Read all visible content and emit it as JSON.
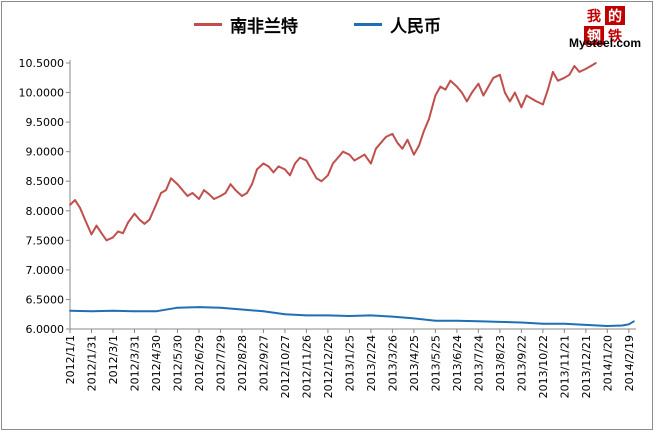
{
  "chart_data": {
    "type": "line",
    "title": "",
    "xlabel": "",
    "ylabel": "",
    "ylim": [
      6.0,
      10.5
    ],
    "yticks": [
      "10.5000",
      "10.0000",
      "9.5000",
      "9.0000",
      "8.5000",
      "8.0000",
      "7.5000",
      "7.0000",
      "6.5000",
      "6.0000"
    ],
    "grid": false,
    "legend_position": "top",
    "x_range": [
      "2012-01-01",
      "2014-03-01"
    ],
    "x_tick_labels": [
      "2012/1/1",
      "2012/1/31",
      "2012/3/1",
      "2012/3/31",
      "2012/4/30",
      "2012/5/30",
      "2012/6/29",
      "2012/7/29",
      "2012/8/28",
      "2012/9/27",
      "2012/10/27",
      "2012/11/26",
      "2012/12/26",
      "2013/1/25",
      "2013/2/24",
      "2013/3/26",
      "2013/4/25",
      "2013/5/25",
      "2013/6/24",
      "2013/7/24",
      "2013/8/23",
      "2013/9/22",
      "2013/10/22",
      "2013/11/21",
      "2013/12/21",
      "2014/1/20",
      "2014/2/19"
    ],
    "series": [
      {
        "name": "南非兰特",
        "color": "#c0504d",
        "x": [
          "2012-01-01",
          "2012-01-08",
          "2012-01-15",
          "2012-01-22",
          "2012-01-31",
          "2012-02-07",
          "2012-02-14",
          "2012-02-21",
          "2012-03-01",
          "2012-03-08",
          "2012-03-15",
          "2012-03-22",
          "2012-03-31",
          "2012-04-07",
          "2012-04-14",
          "2012-04-21",
          "2012-04-30",
          "2012-05-07",
          "2012-05-14",
          "2012-05-21",
          "2012-05-30",
          "2012-06-06",
          "2012-06-13",
          "2012-06-20",
          "2012-06-29",
          "2012-07-06",
          "2012-07-13",
          "2012-07-20",
          "2012-07-29",
          "2012-08-05",
          "2012-08-12",
          "2012-08-19",
          "2012-08-28",
          "2012-09-04",
          "2012-09-11",
          "2012-09-18",
          "2012-09-27",
          "2012-10-04",
          "2012-10-11",
          "2012-10-18",
          "2012-10-27",
          "2012-11-03",
          "2012-11-10",
          "2012-11-17",
          "2012-11-26",
          "2012-12-03",
          "2012-12-10",
          "2012-12-17",
          "2012-12-26",
          "2013-01-02",
          "2013-01-09",
          "2013-01-16",
          "2013-01-25",
          "2013-02-01",
          "2013-02-08",
          "2013-02-15",
          "2013-02-24",
          "2013-03-03",
          "2013-03-10",
          "2013-03-17",
          "2013-03-26",
          "2013-04-02",
          "2013-04-09",
          "2013-04-16",
          "2013-04-25",
          "2013-05-02",
          "2013-05-09",
          "2013-05-16",
          "2013-05-25",
          "2013-06-01",
          "2013-06-08",
          "2013-06-15",
          "2013-06-24",
          "2013-07-01",
          "2013-07-08",
          "2013-07-15",
          "2013-07-24",
          "2013-07-31",
          "2013-08-07",
          "2013-08-14",
          "2013-08-23",
          "2013-08-30",
          "2013-09-06",
          "2013-09-13",
          "2013-09-22",
          "2013-09-29",
          "2013-10-06",
          "2013-10-13",
          "2013-10-22",
          "2013-10-29",
          "2013-11-05",
          "2013-11-12",
          "2013-11-21",
          "2013-11-28",
          "2013-12-05",
          "2013-12-12",
          "2013-12-21",
          "2013-12-28",
          "2014-01-04"
        ],
        "values": [
          8.1,
          8.18,
          8.05,
          7.85,
          7.6,
          7.75,
          7.62,
          7.5,
          7.55,
          7.65,
          7.62,
          7.8,
          7.95,
          7.85,
          7.78,
          7.85,
          8.1,
          8.3,
          8.35,
          8.55,
          8.45,
          8.35,
          8.25,
          8.3,
          8.2,
          8.35,
          8.28,
          8.2,
          8.25,
          8.3,
          8.45,
          8.35,
          8.25,
          8.3,
          8.45,
          8.7,
          8.8,
          8.75,
          8.65,
          8.75,
          8.7,
          8.6,
          8.8,
          8.9,
          8.85,
          8.7,
          8.55,
          8.5,
          8.6,
          8.8,
          8.9,
          9.0,
          8.95,
          8.85,
          8.9,
          8.95,
          8.8,
          9.05,
          9.15,
          9.25,
          9.3,
          9.15,
          9.05,
          9.2,
          8.95,
          9.1,
          9.35,
          9.55,
          9.95,
          10.1,
          10.05,
          10.2,
          10.1,
          10.0,
          9.85,
          10.0,
          10.15,
          9.95,
          10.1,
          10.25,
          10.3,
          10.0,
          9.85,
          10.0,
          9.75,
          9.95,
          9.9,
          9.85,
          9.8,
          10.05,
          10.35,
          10.2,
          10.25,
          10.3,
          10.45,
          10.35,
          10.4,
          10.45,
          10.5
        ]
      },
      {
        "name": "人民币",
        "color": "#1f6fb5",
        "x": [
          "2012-01-01",
          "2012-01-31",
          "2012-03-01",
          "2012-03-31",
          "2012-04-30",
          "2012-05-30",
          "2012-06-29",
          "2012-07-29",
          "2012-08-28",
          "2012-09-27",
          "2012-10-27",
          "2012-11-26",
          "2012-12-26",
          "2013-01-25",
          "2013-02-24",
          "2013-03-26",
          "2013-04-25",
          "2013-05-25",
          "2013-06-24",
          "2013-07-24",
          "2013-08-23",
          "2013-09-22",
          "2013-10-22",
          "2013-11-21",
          "2013-12-21",
          "2014-01-20",
          "2014-02-10",
          "2014-02-19",
          "2014-02-26"
        ],
        "values": [
          6.31,
          6.3,
          6.31,
          6.3,
          6.3,
          6.36,
          6.37,
          6.36,
          6.33,
          6.3,
          6.25,
          6.23,
          6.23,
          6.22,
          6.23,
          6.21,
          6.18,
          6.14,
          6.14,
          6.13,
          6.12,
          6.11,
          6.09,
          6.09,
          6.07,
          6.05,
          6.06,
          6.08,
          6.13
        ]
      }
    ]
  },
  "logo": {
    "chars": [
      "我",
      "的",
      "钢",
      "铁"
    ],
    "char_colors": [
      "#c00000",
      "#ffffff",
      "#ffffff",
      "#c00000"
    ],
    "tile_colors": [
      "#ffffff",
      "#c00000",
      "#c00000",
      "#ffffff"
    ],
    "brand": "Mysteel.com"
  }
}
